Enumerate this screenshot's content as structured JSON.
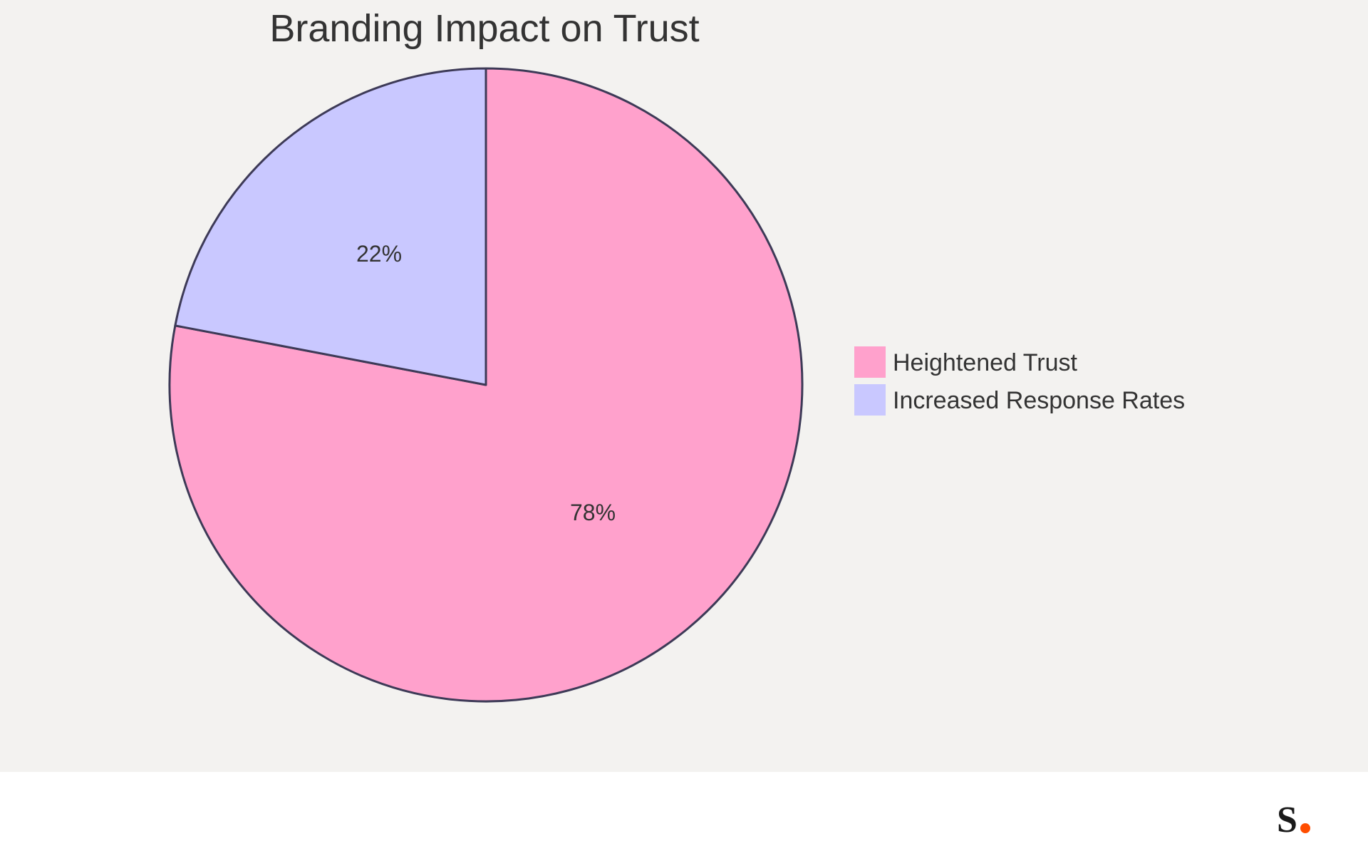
{
  "chart_data": {
    "type": "pie",
    "title": "Branding Impact on Trust",
    "slices": [
      {
        "label": "Heightened Trust",
        "value": 78,
        "display": "78%",
        "color": "#ffa1cc"
      },
      {
        "label": "Increased Response Rates",
        "value": 22,
        "display": "22%",
        "color": "#c9c8ff"
      }
    ],
    "start_angle": "12 o'clock",
    "direction": "clockwise",
    "legend_position": "right",
    "outline_color": "#3d3a57",
    "background_color": "#f3f2f0"
  },
  "brand": {
    "logo_letter": "S",
    "logo_dot_color": "#ff4d00"
  }
}
